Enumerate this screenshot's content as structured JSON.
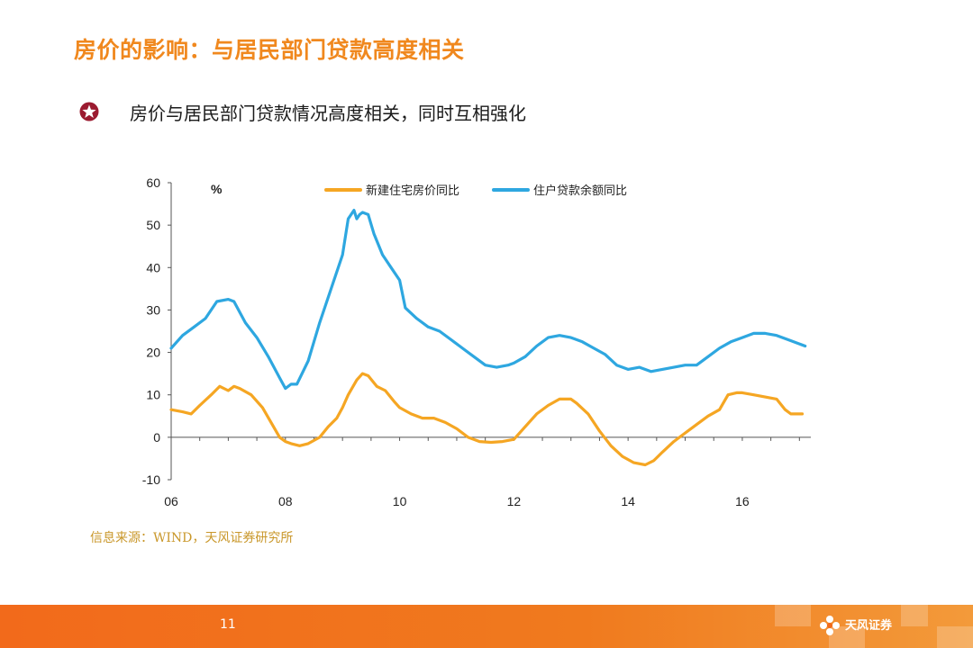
{
  "slide": {
    "title": "房价的影响：与居民部门贷款高度相关",
    "bullet": "房价与居民部门贷款情况高度相关，同时互相强化",
    "source": "信息来源：WIND，天风证券研究所",
    "page_number": "11",
    "logo_text": "天风证券"
  },
  "colors": {
    "title": "#f0881e",
    "footer": "#f26a1b",
    "bullet_icon": "#9b1b30"
  },
  "chart_data": {
    "type": "line",
    "title": "",
    "xlabel": "",
    "ylabel": "%",
    "xlim": [
      2006,
      2017.2
    ],
    "ylim": [
      -10,
      60
    ],
    "y_ticks": [
      60,
      50,
      40,
      30,
      20,
      10,
      0,
      -10
    ],
    "x_ticks": [
      {
        "value": 2006,
        "label": "06"
      },
      {
        "value": 2008,
        "label": "08"
      },
      {
        "value": 2010,
        "label": "10"
      },
      {
        "value": 2012,
        "label": "12"
      },
      {
        "value": 2014,
        "label": "14"
      },
      {
        "value": 2016,
        "label": "16"
      }
    ],
    "legend_position": "top",
    "series": [
      {
        "name": "新建住宅房价同比",
        "color": "#f5a623",
        "x": [
          2006.0,
          2006.2,
          2006.35,
          2006.5,
          2006.7,
          2006.85,
          2007.0,
          2007.1,
          2007.2,
          2007.4,
          2007.6,
          2007.75,
          2007.9,
          2008.0,
          2008.1,
          2008.25,
          2008.4,
          2008.6,
          2008.75,
          2008.9,
          2009.0,
          2009.1,
          2009.25,
          2009.35,
          2009.45,
          2009.6,
          2009.75,
          2009.9,
          2010.0,
          2010.2,
          2010.4,
          2010.6,
          2010.8,
          2011.0,
          2011.2,
          2011.4,
          2011.6,
          2011.8,
          2012.0,
          2012.2,
          2012.4,
          2012.6,
          2012.8,
          2013.0,
          2013.1,
          2013.3,
          2013.5,
          2013.7,
          2013.9,
          2014.1,
          2014.3,
          2014.45,
          2014.6,
          2014.8,
          2015.0,
          2015.2,
          2015.4,
          2015.6,
          2015.75,
          2015.9,
          2016.0,
          2016.2,
          2016.4,
          2016.6,
          2016.75,
          2016.85,
          2016.95,
          2017.05
        ],
        "y": [
          6.5,
          6.0,
          5.5,
          7.5,
          10,
          12,
          11,
          12,
          11.5,
          10,
          7,
          3.5,
          0,
          -1,
          -1.5,
          -2,
          -1.5,
          0,
          2.5,
          4.5,
          7,
          10,
          13.5,
          15,
          14.5,
          12,
          11,
          8.5,
          7,
          5.5,
          4.5,
          4.5,
          3.5,
          2,
          0,
          -1,
          -1.2,
          -1,
          -0.5,
          2.5,
          5.5,
          7.5,
          9,
          9,
          8,
          5.5,
          1.5,
          -2,
          -4.5,
          -6,
          -6.5,
          -5.5,
          -3.5,
          -1,
          1,
          3,
          5,
          6.5,
          10,
          10.5,
          10.5,
          10,
          9.5,
          9,
          6.5,
          5.5,
          5.5,
          5.5
        ]
      },
      {
        "name": "住户贷款余额同比",
        "color": "#2ea7e0",
        "x": [
          2006.0,
          2006.2,
          2006.4,
          2006.6,
          2006.8,
          2007.0,
          2007.1,
          2007.3,
          2007.5,
          2007.7,
          2007.9,
          2008.0,
          2008.1,
          2008.2,
          2008.4,
          2008.6,
          2008.8,
          2009.0,
          2009.1,
          2009.2,
          2009.25,
          2009.3,
          2009.35,
          2009.45,
          2009.55,
          2009.7,
          2009.85,
          2010.0,
          2010.1,
          2010.3,
          2010.5,
          2010.7,
          2010.9,
          2011.1,
          2011.3,
          2011.5,
          2011.7,
          2011.9,
          2012.0,
          2012.2,
          2012.4,
          2012.6,
          2012.8,
          2013.0,
          2013.2,
          2013.4,
          2013.6,
          2013.8,
          2014.0,
          2014.2,
          2014.4,
          2014.6,
          2014.8,
          2015.0,
          2015.2,
          2015.4,
          2015.6,
          2015.8,
          2016.0,
          2016.2,
          2016.4,
          2016.6,
          2016.8,
          2017.0,
          2017.1
        ],
        "y": [
          21,
          24,
          26,
          28,
          32,
          32.5,
          32,
          27,
          23.5,
          19,
          14,
          11.5,
          12.5,
          12.5,
          18,
          27,
          35,
          43,
          51.5,
          53.5,
          51.5,
          52.5,
          53,
          52.5,
          48,
          43,
          40,
          37,
          30.5,
          28,
          26,
          25,
          23,
          21,
          19,
          17,
          16.5,
          17,
          17.5,
          19,
          21.5,
          23.5,
          24,
          23.5,
          22.5,
          21,
          19.5,
          17,
          16,
          16.5,
          15.5,
          16,
          16.5,
          17,
          17,
          19,
          21,
          22.5,
          23.5,
          24.5,
          24.5,
          24,
          23,
          22,
          21.5
        ]
      }
    ]
  }
}
